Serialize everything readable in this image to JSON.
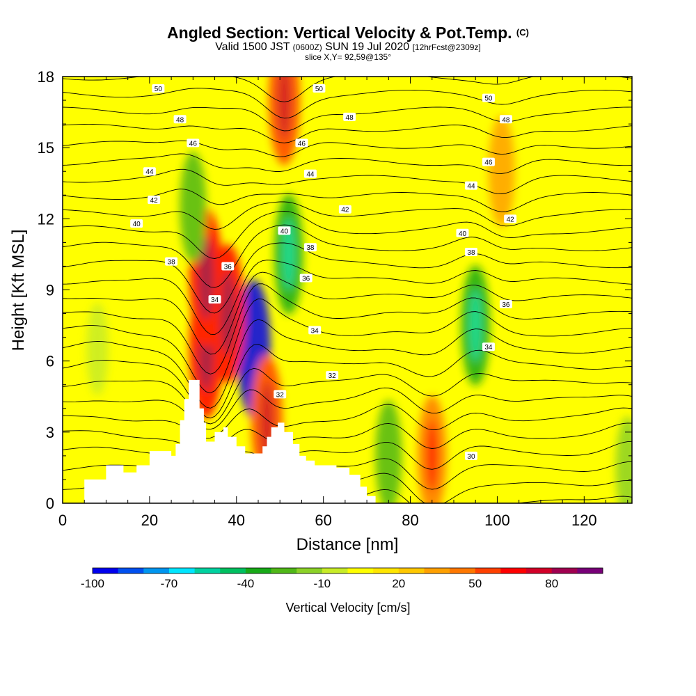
{
  "header": {
    "title": "Angled Section: Vertical Velocity & Pot.Temp.",
    "copyright": "(C)",
    "valid_prefix": "Valid 1500 JST",
    "valid_zulu": "(0600Z)",
    "valid_date": "SUN 19 Jul 2020",
    "forecast": "[12hrFcst@2309z]",
    "slice": "slice X,Y= 92,59@135°"
  },
  "chart_data": {
    "type": "heatmap",
    "title": "Angled Section: Vertical Velocity & Pot.Temp.",
    "xlabel": "Distance [nm]",
    "ylabel": "Height [Kft MSL]",
    "xlim": [
      0,
      131
    ],
    "ylim": [
      0,
      18
    ],
    "x_ticks": [
      0,
      20,
      40,
      60,
      80,
      100,
      120
    ],
    "y_ticks": [
      0,
      3,
      6,
      9,
      12,
      15,
      18
    ],
    "colorbar": {
      "label": "Vertical Velocity [cm/s]",
      "tick_labels": [
        -100,
        -70,
        -40,
        -10,
        20,
        50,
        80
      ],
      "levels": [
        -100,
        -90,
        -80,
        -70,
        -60,
        -50,
        -40,
        -30,
        -20,
        -10,
        0,
        10,
        20,
        30,
        40,
        50,
        60,
        70,
        80,
        90
      ],
      "colors": [
        "#0000ee",
        "#0050f0",
        "#0096f0",
        "#00e6ff",
        "#00d2a0",
        "#00c060",
        "#18aa18",
        "#50b818",
        "#8cd228",
        "#c8ec28",
        "#ffff00",
        "#ffe600",
        "#ffc800",
        "#ffa000",
        "#ff7800",
        "#ff4000",
        "#ff0000",
        "#d20028",
        "#a00050",
        "#780078"
      ]
    },
    "contours": {
      "variable": "Pot.Temp.",
      "labeled_levels": [
        30,
        32,
        34,
        36,
        38,
        40,
        42,
        44,
        46,
        48,
        50
      ]
    },
    "features": [
      {
        "x": 44,
        "y": 6.5,
        "value": -100
      },
      {
        "x": 33,
        "y": 6.5,
        "value": 60
      },
      {
        "x": 38,
        "y": 8.0,
        "value": 60
      },
      {
        "x": 47,
        "y": 3.5,
        "value": 50
      },
      {
        "x": 51,
        "y": 17.0,
        "value": 50
      },
      {
        "x": 33,
        "y": 9.5,
        "value": 60
      },
      {
        "x": 95,
        "y": 7.5,
        "value": -40
      },
      {
        "x": 101,
        "y": 14.0,
        "value": 30
      },
      {
        "x": 85,
        "y": 2.0,
        "value": 40
      },
      {
        "x": 75,
        "y": 2.0,
        "value": -30
      },
      {
        "x": 52,
        "y": 10.5,
        "value": -40
      },
      {
        "x": 30,
        "y": 12.5,
        "value": -30
      },
      {
        "x": 8,
        "y": 6.5,
        "value": -10
      },
      {
        "x": 130,
        "y": 1.5,
        "value": -20
      }
    ],
    "terrain": [
      [
        0,
        0
      ],
      [
        5,
        1.0
      ],
      [
        10,
        1.6
      ],
      [
        14,
        1.3
      ],
      [
        17,
        1.6
      ],
      [
        20,
        2.2
      ],
      [
        24,
        2.2
      ],
      [
        25,
        2.0
      ],
      [
        26,
        2.5
      ],
      [
        27,
        3.5
      ],
      [
        28,
        4.4
      ],
      [
        29,
        5.2
      ],
      [
        30.5,
        5.2
      ],
      [
        31.5,
        4.0
      ],
      [
        32.5,
        3.4
      ],
      [
        33,
        2.6
      ],
      [
        34,
        2.6
      ],
      [
        35,
        3.0
      ],
      [
        37,
        3.2
      ],
      [
        38,
        2.8
      ],
      [
        40,
        2.4
      ],
      [
        42,
        2.1
      ],
      [
        44,
        2.1
      ],
      [
        46,
        2.4
      ],
      [
        47,
        2.8
      ],
      [
        48,
        3.2
      ],
      [
        49.5,
        3.4
      ],
      [
        51,
        3.0
      ],
      [
        53,
        2.5
      ],
      [
        54.5,
        2.0
      ],
      [
        56,
        1.8
      ],
      [
        58,
        1.6
      ],
      [
        63,
        1.5
      ],
      [
        66,
        1.2
      ],
      [
        68.5,
        0.7
      ],
      [
        70,
        0.3
      ],
      [
        72,
        0
      ],
      [
        131,
        0
      ]
    ],
    "isentrope_labels": [
      {
        "text": "50",
        "x": 22,
        "y": 17.5
      },
      {
        "text": "50",
        "x": 59,
        "y": 17.5
      },
      {
        "text": "50",
        "x": 98,
        "y": 17.1
      },
      {
        "text": "48",
        "x": 27,
        "y": 16.2
      },
      {
        "text": "48",
        "x": 66,
        "y": 16.3
      },
      {
        "text": "48",
        "x": 102,
        "y": 16.2
      },
      {
        "text": "46",
        "x": 30,
        "y": 15.2
      },
      {
        "text": "46",
        "x": 55,
        "y": 15.2
      },
      {
        "text": "46",
        "x": 98,
        "y": 14.4
      },
      {
        "text": "44",
        "x": 20,
        "y": 14.0
      },
      {
        "text": "44",
        "x": 57,
        "y": 13.9
      },
      {
        "text": "44",
        "x": 94,
        "y": 13.4
      },
      {
        "text": "42",
        "x": 21,
        "y": 12.8
      },
      {
        "text": "42",
        "x": 65,
        "y": 12.4
      },
      {
        "text": "42",
        "x": 103,
        "y": 12.0
      },
      {
        "text": "40",
        "x": 17,
        "y": 11.8
      },
      {
        "text": "40",
        "x": 51,
        "y": 11.5
      },
      {
        "text": "40",
        "x": 92,
        "y": 11.4
      },
      {
        "text": "38",
        "x": 57,
        "y": 10.8
      },
      {
        "text": "38",
        "x": 94,
        "y": 10.6
      },
      {
        "text": "38",
        "x": 25,
        "y": 10.2
      },
      {
        "text": "36",
        "x": 38,
        "y": 10.0
      },
      {
        "text": "36",
        "x": 56,
        "y": 9.5
      },
      {
        "text": "36",
        "x": 102,
        "y": 8.4
      },
      {
        "text": "34",
        "x": 35,
        "y": 8.6
      },
      {
        "text": "34",
        "x": 58,
        "y": 7.3
      },
      {
        "text": "34",
        "x": 98,
        "y": 6.6
      },
      {
        "text": "32",
        "x": 62,
        "y": 5.4
      },
      {
        "text": "32",
        "x": 50,
        "y": 4.6
      },
      {
        "text": "30",
        "x": 94,
        "y": 2.0
      }
    ]
  }
}
